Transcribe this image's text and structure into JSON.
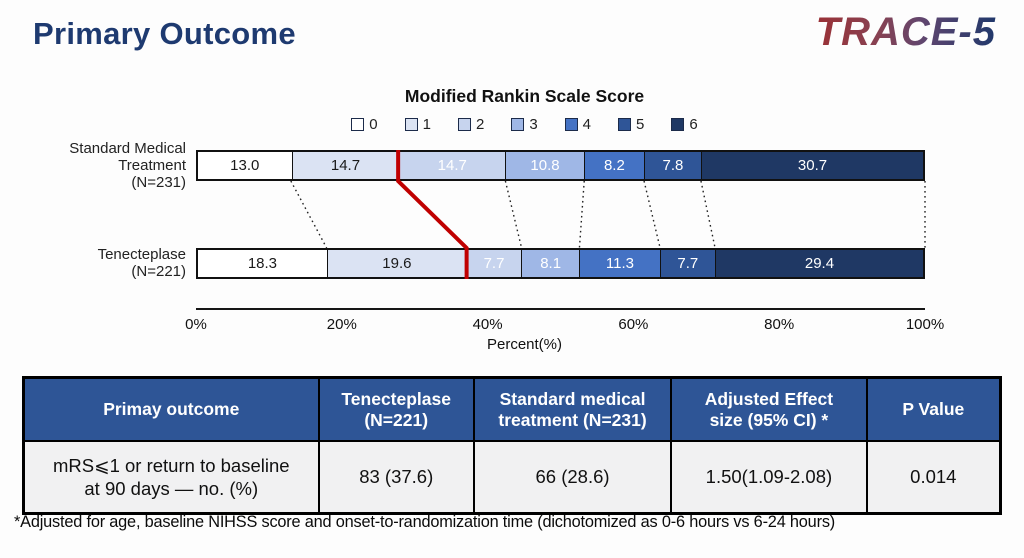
{
  "page": {
    "title": "Primary Outcome",
    "logo": "TRACE-5",
    "footnote": "*Adjusted for age, baseline NIHSS score and onset-to-randomization time (dichotomized as 0-6 hours vs 6-24 hours)"
  },
  "chart_data": {
    "type": "bar",
    "stacked": true,
    "orientation": "horizontal",
    "title": "Modified Rankin Scale Score",
    "xlabel": "Percent(%)",
    "x_ticks": [
      "0%",
      "20%",
      "40%",
      "60%",
      "80%",
      "100%"
    ],
    "xlim": [
      0,
      100
    ],
    "legend": [
      {
        "label": "0",
        "color": "#ffffff"
      },
      {
        "label": "1",
        "color": "#dbe3f3"
      },
      {
        "label": "2",
        "color": "#c7d4ee"
      },
      {
        "label": "3",
        "color": "#9fb7e6"
      },
      {
        "label": "4",
        "color": "#4472c4"
      },
      {
        "label": "5",
        "color": "#2f5597"
      },
      {
        "label": "6",
        "color": "#1f3864"
      }
    ],
    "segment_text_colors": [
      "#1a1a1a",
      "#1a1a1a",
      "#ffffff",
      "#ffffff",
      "#ffffff",
      "#ffffff",
      "#ffffff"
    ],
    "bars": [
      {
        "label_lines": [
          "Standard Medical",
          "Treatment",
          "(N=231)"
        ],
        "values": [
          13.0,
          14.7,
          14.7,
          10.8,
          8.2,
          7.8,
          30.7
        ]
      },
      {
        "label_lines": [
          "Tenecteplase",
          "(N=221)"
        ],
        "values": [
          18.3,
          19.6,
          7.7,
          8.1,
          11.3,
          7.7,
          29.4
        ]
      }
    ],
    "red_divider_after_segment": 2,
    "dotted_after_segments": [
      1,
      3,
      4,
      5,
      6,
      7
    ],
    "red_line_color": "#c00000",
    "annotation": "red line marks mRS 0-1 vs 2-6 boundary; dotted lines connect segment boundaries between bars"
  },
  "table": {
    "headers": [
      "Primay outcome",
      "Tenecteplase\n(N=221)",
      "Standard medical\ntreatment (N=231)",
      "Adjusted Effect\nsize (95% CI) *",
      "P Value"
    ],
    "rows": [
      [
        "mRS⩽1 or  return to baseline\nat 90 days — no. (%)",
        "83 (37.6)",
        "66 (28.6)",
        "1.50(1.09-2.08)",
        "0.014"
      ]
    ]
  }
}
